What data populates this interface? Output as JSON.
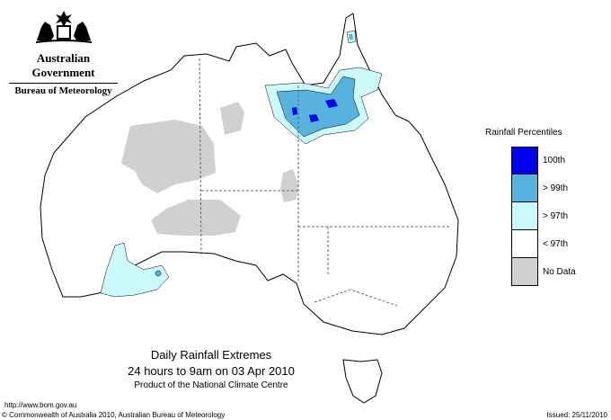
{
  "header": {
    "government": "Australian Government",
    "bureau": "Bureau of Meteorology",
    "crest": "commonwealth-coat-of-arms"
  },
  "legend": {
    "title": "Rainfall Percentiles",
    "items": [
      {
        "label": "100th",
        "color": "#0000ee"
      },
      {
        "label": "> 99th",
        "color": "#55b3dd"
      },
      {
        "label": "> 97th",
        "color": "#ccfafa"
      },
      {
        "label": "< 97th",
        "color": "#ffffff"
      },
      {
        "label": "No Data",
        "color": "#d0d0d0"
      }
    ]
  },
  "caption": {
    "line1": "Daily Rainfall Extremes",
    "line2": "24 hours to 9am on 03 Apr 2010",
    "line3": "Product of the National Climate Centre"
  },
  "footer": {
    "url": "http://www.bom.gov.au",
    "copyright": "© Commonwealth of Australia 2010, Australian Bureau of Meteorology",
    "issued": "Issued: 25/11/2010"
  },
  "colors": {
    "land": "#ffffff",
    "coast": "#000000",
    "no_data": "#d0d0d0",
    "p97": "#ccfafa",
    "p99": "#55b3dd",
    "p100": "#0000ee",
    "state_border": "#666666"
  }
}
